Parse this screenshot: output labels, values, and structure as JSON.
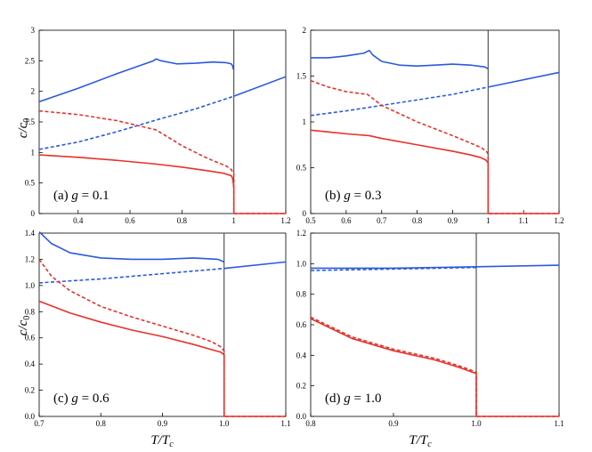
{
  "figure": {
    "y_axis_label": "c/c",
    "y_axis_sub": "0",
    "x_axis_label": "T/T",
    "x_axis_sub": "c"
  },
  "colors": {
    "blue": "#2b59e0",
    "red": "#e8312a",
    "tc_line": "#333333"
  },
  "chart_data": [
    {
      "id": "a",
      "type": "line",
      "label_prefix": "(a) ",
      "label_var": "g",
      "label_rest": " = 0.1",
      "xlim": [
        0.25,
        1.2
      ],
      "ylim": [
        0,
        3
      ],
      "xticks": [
        "0.4",
        "0.6",
        "0.8",
        "1",
        "1.2"
      ],
      "xtick_values": [
        0.4,
        0.6,
        0.8,
        1.0,
        1.2
      ],
      "yticks": [
        "0",
        "0.5",
        "1",
        "1.5",
        "2",
        "2.5",
        "3"
      ],
      "ytick_values": [
        0,
        0.5,
        1,
        1.5,
        2,
        2.5,
        3
      ],
      "tc": 1.0,
      "series": [
        {
          "name": "blue solid",
          "color": "blue",
          "dash": false,
          "x": [
            0.25,
            0.4,
            0.55,
            0.69,
            0.7,
            0.72,
            0.78,
            0.85,
            0.92,
            0.97,
            0.99,
            0.995,
            0.997,
            1.0
          ],
          "y": [
            1.83,
            2.05,
            2.29,
            2.5,
            2.53,
            2.5,
            2.45,
            2.46,
            2.48,
            2.47,
            2.45,
            2.42,
            2.38,
            2.35
          ]
        },
        {
          "name": "blue normal",
          "color": "blue",
          "dash": false,
          "x": [
            1.0,
            1.2
          ],
          "y": [
            1.92,
            2.24
          ]
        },
        {
          "name": "blue dashed",
          "color": "blue",
          "dash": true,
          "x": [
            0.25,
            0.4,
            0.55,
            0.7,
            0.85,
            1.0
          ],
          "y": [
            1.05,
            1.17,
            1.34,
            1.53,
            1.71,
            1.92
          ]
        },
        {
          "name": "red dashed",
          "color": "red",
          "dash": true,
          "x": [
            0.25,
            0.4,
            0.55,
            0.7,
            0.8,
            0.9,
            0.97,
            0.99,
            1.0,
            1.0,
            1.2
          ],
          "y": [
            1.68,
            1.62,
            1.52,
            1.37,
            1.11,
            0.9,
            0.78,
            0.72,
            0.65,
            0.0,
            0.0
          ]
        },
        {
          "name": "red solid",
          "color": "red",
          "dash": false,
          "x": [
            0.25,
            0.4,
            0.55,
            0.7,
            0.8,
            0.9,
            0.96,
            0.99,
            0.995,
            0.998,
            1.0,
            1.0,
            1.2
          ],
          "y": [
            0.96,
            0.92,
            0.87,
            0.81,
            0.76,
            0.7,
            0.66,
            0.62,
            0.58,
            0.5,
            0.4,
            0.0,
            0.0
          ]
        }
      ]
    },
    {
      "id": "b",
      "type": "line",
      "label_prefix": "(b) ",
      "label_var": "g",
      "label_rest": " = 0.3",
      "xlim": [
        0.5,
        1.2
      ],
      "ylim": [
        0,
        2
      ],
      "xticks": [
        "0.5",
        "0.6",
        "0.7",
        "0.8",
        "0.9",
        "1",
        "1.1",
        "1.2"
      ],
      "xtick_values": [
        0.5,
        0.6,
        0.7,
        0.8,
        0.9,
        1.0,
        1.1,
        1.2
      ],
      "yticks": [
        "0",
        "0.5",
        "1",
        "1.5",
        "2"
      ],
      "ytick_values": [
        0,
        0.5,
        1,
        1.5,
        2
      ],
      "tc": 1.0,
      "series": [
        {
          "name": "blue solid",
          "color": "blue",
          "dash": false,
          "x": [
            0.5,
            0.55,
            0.6,
            0.65,
            0.665,
            0.675,
            0.7,
            0.75,
            0.8,
            0.85,
            0.9,
            0.95,
            0.99,
            1.0
          ],
          "y": [
            1.7,
            1.7,
            1.72,
            1.75,
            1.78,
            1.73,
            1.66,
            1.62,
            1.61,
            1.62,
            1.63,
            1.62,
            1.6,
            1.58
          ]
        },
        {
          "name": "blue normal",
          "color": "blue",
          "dash": false,
          "x": [
            1.0,
            1.2
          ],
          "y": [
            1.38,
            1.54
          ]
        },
        {
          "name": "blue dashed",
          "color": "blue",
          "dash": true,
          "x": [
            0.5,
            0.6,
            0.7,
            0.8,
            0.9,
            1.0
          ],
          "y": [
            1.07,
            1.12,
            1.18,
            1.24,
            1.3,
            1.38
          ]
        },
        {
          "name": "red dashed",
          "color": "red",
          "dash": true,
          "x": [
            0.5,
            0.55,
            0.6,
            0.66,
            0.7,
            0.8,
            0.9,
            0.95,
            0.98,
            0.995,
            1.0,
            1.0,
            1.2
          ],
          "y": [
            1.45,
            1.38,
            1.33,
            1.3,
            1.18,
            1.0,
            0.85,
            0.77,
            0.72,
            0.68,
            0.65,
            0.0,
            0.0
          ]
        },
        {
          "name": "red solid",
          "color": "red",
          "dash": false,
          "x": [
            0.5,
            0.55,
            0.6,
            0.665,
            0.7,
            0.8,
            0.9,
            0.95,
            0.98,
            0.995,
            1.0,
            1.0,
            1.2
          ],
          "y": [
            0.91,
            0.89,
            0.87,
            0.85,
            0.82,
            0.75,
            0.68,
            0.64,
            0.61,
            0.58,
            0.55,
            0.0,
            0.0
          ]
        }
      ]
    },
    {
      "id": "c",
      "type": "line",
      "label_prefix": "(c) ",
      "label_var": "g",
      "label_rest": " = 0.6",
      "xlim": [
        0.7,
        1.1
      ],
      "ylim": [
        0,
        1.4
      ],
      "xticks": [
        "0.7",
        "0.8",
        "0.9",
        "1.0",
        "1.1"
      ],
      "xtick_values": [
        0.7,
        0.8,
        0.9,
        1.0,
        1.1
      ],
      "yticks": [
        "0.0",
        "0.2",
        "0.4",
        "0.6",
        "0.8",
        "1.0",
        "1.2",
        "1.4"
      ],
      "ytick_values": [
        0,
        0.2,
        0.4,
        0.6,
        0.8,
        1.0,
        1.2,
        1.4
      ],
      "tc": 1.0,
      "series": [
        {
          "name": "blue solid",
          "color": "blue",
          "dash": false,
          "x": [
            0.7,
            0.72,
            0.75,
            0.8,
            0.85,
            0.9,
            0.95,
            0.99,
            1.0
          ],
          "y": [
            1.41,
            1.32,
            1.25,
            1.21,
            1.2,
            1.2,
            1.21,
            1.2,
            1.18
          ]
        },
        {
          "name": "blue normal",
          "color": "blue",
          "dash": false,
          "x": [
            1.0,
            1.1
          ],
          "y": [
            1.13,
            1.18
          ]
        },
        {
          "name": "blue dashed",
          "color": "blue",
          "dash": true,
          "x": [
            0.7,
            0.8,
            0.9,
            1.0
          ],
          "y": [
            1.02,
            1.05,
            1.09,
            1.13
          ]
        },
        {
          "name": "red dashed",
          "color": "red",
          "dash": true,
          "x": [
            0.7,
            0.72,
            0.75,
            0.8,
            0.85,
            0.9,
            0.95,
            0.98,
            0.995,
            1.0,
            1.0,
            1.1
          ],
          "y": [
            1.2,
            1.07,
            0.96,
            0.84,
            0.76,
            0.69,
            0.62,
            0.57,
            0.53,
            0.5,
            0.0,
            0.0
          ]
        },
        {
          "name": "red solid",
          "color": "red",
          "dash": false,
          "x": [
            0.7,
            0.75,
            0.8,
            0.85,
            0.9,
            0.95,
            0.98,
            0.995,
            1.0,
            1.0,
            1.1
          ],
          "y": [
            0.88,
            0.79,
            0.72,
            0.66,
            0.61,
            0.55,
            0.51,
            0.49,
            0.47,
            0.0,
            0.0
          ]
        }
      ]
    },
    {
      "id": "d",
      "type": "line",
      "label_prefix": "(d) ",
      "label_var": "g",
      "label_rest": " = 1.0",
      "xlim": [
        0.8,
        1.1
      ],
      "ylim": [
        0,
        1.2
      ],
      "xticks": [
        "0.8",
        "0.9",
        "1.0",
        "1.1"
      ],
      "xtick_values": [
        0.8,
        0.9,
        1.0,
        1.1
      ],
      "yticks": [
        "0.0",
        "0.2",
        "0.4",
        "0.6",
        "0.8",
        "1.0",
        "1.2"
      ],
      "ytick_values": [
        0,
        0.2,
        0.4,
        0.6,
        0.8,
        1.0,
        1.2
      ],
      "tc": 1.0,
      "series": [
        {
          "name": "blue solid",
          "color": "blue",
          "dash": false,
          "x": [
            0.8,
            0.9,
            1.0,
            1.1
          ],
          "y": [
            0.97,
            0.97,
            0.98,
            0.99
          ]
        },
        {
          "name": "blue dashed",
          "color": "blue",
          "dash": true,
          "x": [
            0.8,
            0.9,
            1.0
          ],
          "y": [
            0.955,
            0.965,
            0.975
          ]
        },
        {
          "name": "red dashed",
          "color": "red",
          "dash": true,
          "x": [
            0.8,
            0.85,
            0.9,
            0.95,
            0.98,
            1.0,
            1.0,
            1.1
          ],
          "y": [
            0.65,
            0.52,
            0.44,
            0.38,
            0.33,
            0.29,
            0.0,
            0.0
          ]
        },
        {
          "name": "red solid",
          "color": "red",
          "dash": false,
          "x": [
            0.8,
            0.85,
            0.9,
            0.95,
            0.98,
            1.0,
            1.0,
            1.1
          ],
          "y": [
            0.64,
            0.51,
            0.43,
            0.37,
            0.32,
            0.28,
            0.0,
            0.0
          ]
        }
      ]
    }
  ]
}
